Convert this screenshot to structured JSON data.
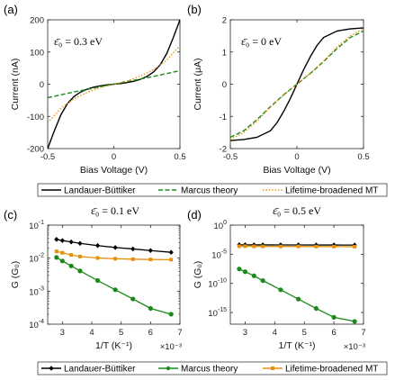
{
  "chart_data": [
    {
      "panel": "(a)",
      "type": "line",
      "annotation": "ε̄₀ = 0.3 eV",
      "xlabel": "Bias Voltage (V)",
      "ylabel": "Current (nA)",
      "xlim": [
        -0.5,
        0.5
      ],
      "ylim": [
        -200,
        200
      ],
      "xticks": [
        -0.5,
        0,
        0.5
      ],
      "xtick_labels": [
        "-0.5",
        "0",
        "0.5"
      ],
      "yticks": [
        -200,
        -100,
        0,
        100,
        200
      ],
      "ytick_labels": [
        "-200",
        "-100",
        "0",
        "100",
        "200"
      ],
      "grid": false,
      "series": [
        {
          "name": "Landauer-Büttiker",
          "color": "#000000",
          "dash": "solid",
          "x": [
            -0.5,
            -0.45,
            -0.4,
            -0.35,
            -0.3,
            -0.25,
            -0.2,
            -0.15,
            -0.1,
            -0.05,
            0,
            0.05,
            0.1,
            0.15,
            0.2,
            0.25,
            0.3,
            0.35,
            0.4,
            0.45,
            0.5
          ],
          "y": [
            -200,
            -145,
            -95,
            -60,
            -38,
            -24,
            -15,
            -9,
            -5,
            -2,
            0,
            2,
            5,
            9,
            15,
            24,
            38,
            60,
            95,
            145,
            200
          ]
        },
        {
          "name": "Marcus theory",
          "color": "#1a8a1a",
          "dash": "dashed",
          "x": [
            -0.5,
            -0.4,
            -0.3,
            -0.2,
            -0.1,
            0,
            0.1,
            0.2,
            0.3,
            0.4,
            0.5
          ],
          "y": [
            -42,
            -33,
            -24,
            -16,
            -8,
            0,
            8,
            16,
            24,
            33,
            42
          ]
        },
        {
          "name": "Lifetime-broadened MT",
          "color": "#e8900c",
          "dash": "dotted",
          "x": [
            -0.5,
            -0.4,
            -0.3,
            -0.2,
            -0.1,
            0,
            0.1,
            0.2,
            0.3,
            0.4,
            0.5
          ],
          "y": [
            -120,
            -75,
            -45,
            -25,
            -10,
            0,
            10,
            25,
            45,
            75,
            120
          ]
        }
      ]
    },
    {
      "panel": "(b)",
      "type": "line",
      "annotation": "ε̄₀ = 0 eV",
      "xlabel": "Bias Voltage (V)",
      "ylabel": "Current (μA)",
      "xlim": [
        -0.5,
        0.5
      ],
      "ylim": [
        -2,
        2
      ],
      "xticks": [
        -0.5,
        0,
        0.5
      ],
      "xtick_labels": [
        "-0.5",
        "0",
        "0.5"
      ],
      "yticks": [
        -2,
        -1,
        0,
        1,
        2
      ],
      "ytick_labels": [
        "-2",
        "-1",
        "0",
        "1",
        "2"
      ],
      "grid": false,
      "series": [
        {
          "name": "Landauer-Büttiker",
          "color": "#000000",
          "dash": "solid",
          "x": [
            -0.5,
            -0.4,
            -0.3,
            -0.2,
            -0.15,
            -0.1,
            -0.05,
            0,
            0.05,
            0.1,
            0.15,
            0.2,
            0.3,
            0.4,
            0.5
          ],
          "y": [
            -1.75,
            -1.72,
            -1.65,
            -1.45,
            -1.2,
            -0.85,
            -0.45,
            0,
            0.45,
            0.85,
            1.2,
            1.45,
            1.65,
            1.72,
            1.75
          ]
        },
        {
          "name": "Marcus theory",
          "color": "#1a8a1a",
          "dash": "dashed",
          "x": [
            -0.5,
            -0.4,
            -0.3,
            -0.2,
            -0.1,
            0,
            0.1,
            0.2,
            0.3,
            0.4,
            0.5
          ],
          "y": [
            -1.65,
            -1.45,
            -1.1,
            -0.7,
            -0.33,
            0,
            0.33,
            0.7,
            1.1,
            1.45,
            1.65
          ]
        },
        {
          "name": "Lifetime-broadened MT",
          "color": "#e8900c",
          "dash": "dotted",
          "x": [
            -0.5,
            -0.4,
            -0.3,
            -0.2,
            -0.1,
            0,
            0.1,
            0.2,
            0.3,
            0.4,
            0.5
          ],
          "y": [
            -1.72,
            -1.5,
            -1.15,
            -0.72,
            -0.34,
            0,
            0.34,
            0.72,
            1.15,
            1.5,
            1.72
          ]
        }
      ]
    },
    {
      "panel": "(c)",
      "type": "line",
      "title": "ε̄₀ = 0.1 eV",
      "xlabel": "1/T (K⁻¹)",
      "ylabel": "G (G₀)",
      "xlim": [
        2.5,
        7
      ],
      "x_multiplier": "×10⁻³",
      "y_scale": "log",
      "ylim": [
        0.0001,
        0.1
      ],
      "xticks": [
        3,
        4,
        5,
        6,
        7
      ],
      "xtick_labels": [
        "3",
        "4",
        "5",
        "6",
        "7"
      ],
      "yticks": [
        0.0001,
        0.001,
        0.01,
        0.1
      ],
      "ytick_base": [
        "10",
        "10",
        "10",
        "10"
      ],
      "ytick_exp": [
        "-4",
        "-3",
        "-2",
        "-1"
      ],
      "grid": false,
      "series": [
        {
          "name": "Landauer-Büttiker",
          "color": "#000000",
          "marker": "diamond",
          "x": [
            2.8,
            3.0,
            3.3,
            3.6,
            4.2,
            4.8,
            5.4,
            6.0,
            6.7
          ],
          "y": [
            0.037,
            0.034,
            0.031,
            0.028,
            0.024,
            0.021,
            0.019,
            0.017,
            0.015
          ]
        },
        {
          "name": "Marcus theory",
          "color": "#1a8a1a",
          "marker": "circle",
          "x": [
            2.8,
            3.0,
            3.3,
            3.6,
            4.2,
            4.8,
            5.4,
            6.0,
            6.7
          ],
          "y": [
            0.0105,
            0.0082,
            0.0058,
            0.0041,
            0.0021,
            0.0011,
            0.00058,
            0.0003,
            0.0002
          ]
        },
        {
          "name": "Lifetime-broadened MT",
          "color": "#e8900c",
          "marker": "square",
          "x": [
            2.8,
            3.0,
            3.3,
            3.6,
            4.2,
            4.8,
            5.4,
            6.0,
            6.7
          ],
          "y": [
            0.016,
            0.0145,
            0.0125,
            0.0112,
            0.0101,
            0.0096,
            0.0093,
            0.0091,
            0.009
          ]
        }
      ]
    },
    {
      "panel": "(d)",
      "type": "line",
      "title": "ε̄₀ = 0.5 eV",
      "xlabel": "1/T (K⁻¹)",
      "ylabel": "G (G₀)",
      "xlim": [
        2.5,
        7
      ],
      "x_multiplier": "×10⁻³",
      "y_scale": "log",
      "ylim": [
        1e-17,
        1
      ],
      "xticks": [
        3,
        4,
        5,
        6,
        7
      ],
      "xtick_labels": [
        "3",
        "4",
        "5",
        "6",
        "7"
      ],
      "yticks": [
        1e-15,
        1e-10,
        1e-05,
        1
      ],
      "ytick_base": [
        "10",
        "10",
        "10",
        "10"
      ],
      "ytick_exp": [
        "-15",
        "-10",
        "-5",
        "0"
      ],
      "grid": false,
      "series": [
        {
          "name": "Landauer-Büttiker",
          "color": "#000000",
          "marker": "diamond",
          "x": [
            2.8,
            3.0,
            3.3,
            3.6,
            4.2,
            4.8,
            5.4,
            6.0,
            6.7
          ],
          "y": [
            0.00042,
            0.00042,
            0.00041,
            0.00041,
            0.0004,
            0.0004,
            0.00039,
            0.00039,
            0.00038
          ]
        },
        {
          "name": "Marcus theory",
          "color": "#1a8a1a",
          "marker": "circle",
          "x": [
            2.8,
            3.0,
            3.3,
            3.6,
            4.2,
            4.8,
            5.4,
            6.0,
            6.7
          ],
          "y": [
            3e-08,
            1e-08,
            2e-09,
            3e-10,
            8e-12,
            2e-13,
            5e-15,
            1.5e-16,
            3e-17
          ]
        },
        {
          "name": "Lifetime-broadened MT",
          "color": "#e8900c",
          "marker": "square",
          "x": [
            2.8,
            3.0,
            3.3,
            3.6,
            4.2,
            4.8,
            5.4,
            6.0,
            6.7
          ],
          "y": [
            0.00024,
            0.00024,
            0.00023,
            0.00023,
            0.00022,
            0.00022,
            0.00021,
            0.00021,
            0.0002
          ]
        }
      ]
    }
  ],
  "legends": [
    {
      "entries": [
        "Landauer-Büttiker",
        "Marcus theory",
        "Lifetime-broadened MT"
      ],
      "style": "lines"
    },
    {
      "entries": [
        "Landauer-Büttiker",
        "Marcus theory",
        "Lifetime-broadened MT"
      ],
      "style": "markers"
    }
  ]
}
